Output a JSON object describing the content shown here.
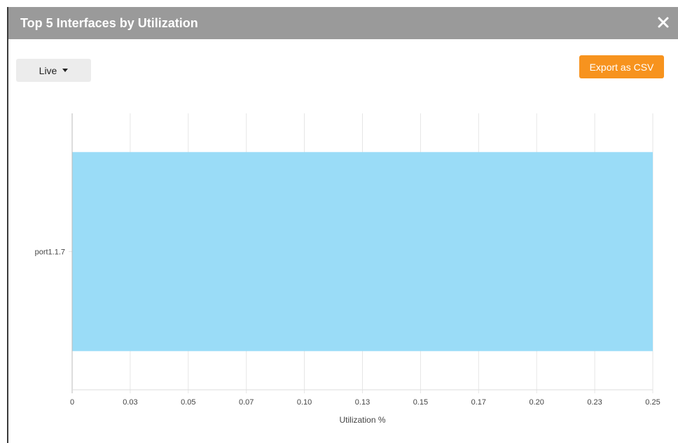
{
  "window": {
    "title": "Top 5 Interfaces by Utilization"
  },
  "toolbar": {
    "time_range": "Live",
    "export_label": "Export as CSV"
  },
  "colors": {
    "bar": "#9adcf7",
    "export_button": "#f7931e",
    "header": "#9a9a9a"
  },
  "chart_data": {
    "type": "bar",
    "orientation": "horizontal",
    "categories": [
      "port1.1.7"
    ],
    "values": [
      0.25
    ],
    "xlabel": "Utilization %",
    "ylabel": "",
    "xlim": [
      0,
      0.25
    ],
    "xticks": [
      "0",
      "0.03",
      "0.05",
      "0.07",
      "0.10",
      "0.13",
      "0.15",
      "0.17",
      "0.20",
      "0.23",
      "0.25"
    ],
    "grid": true
  }
}
